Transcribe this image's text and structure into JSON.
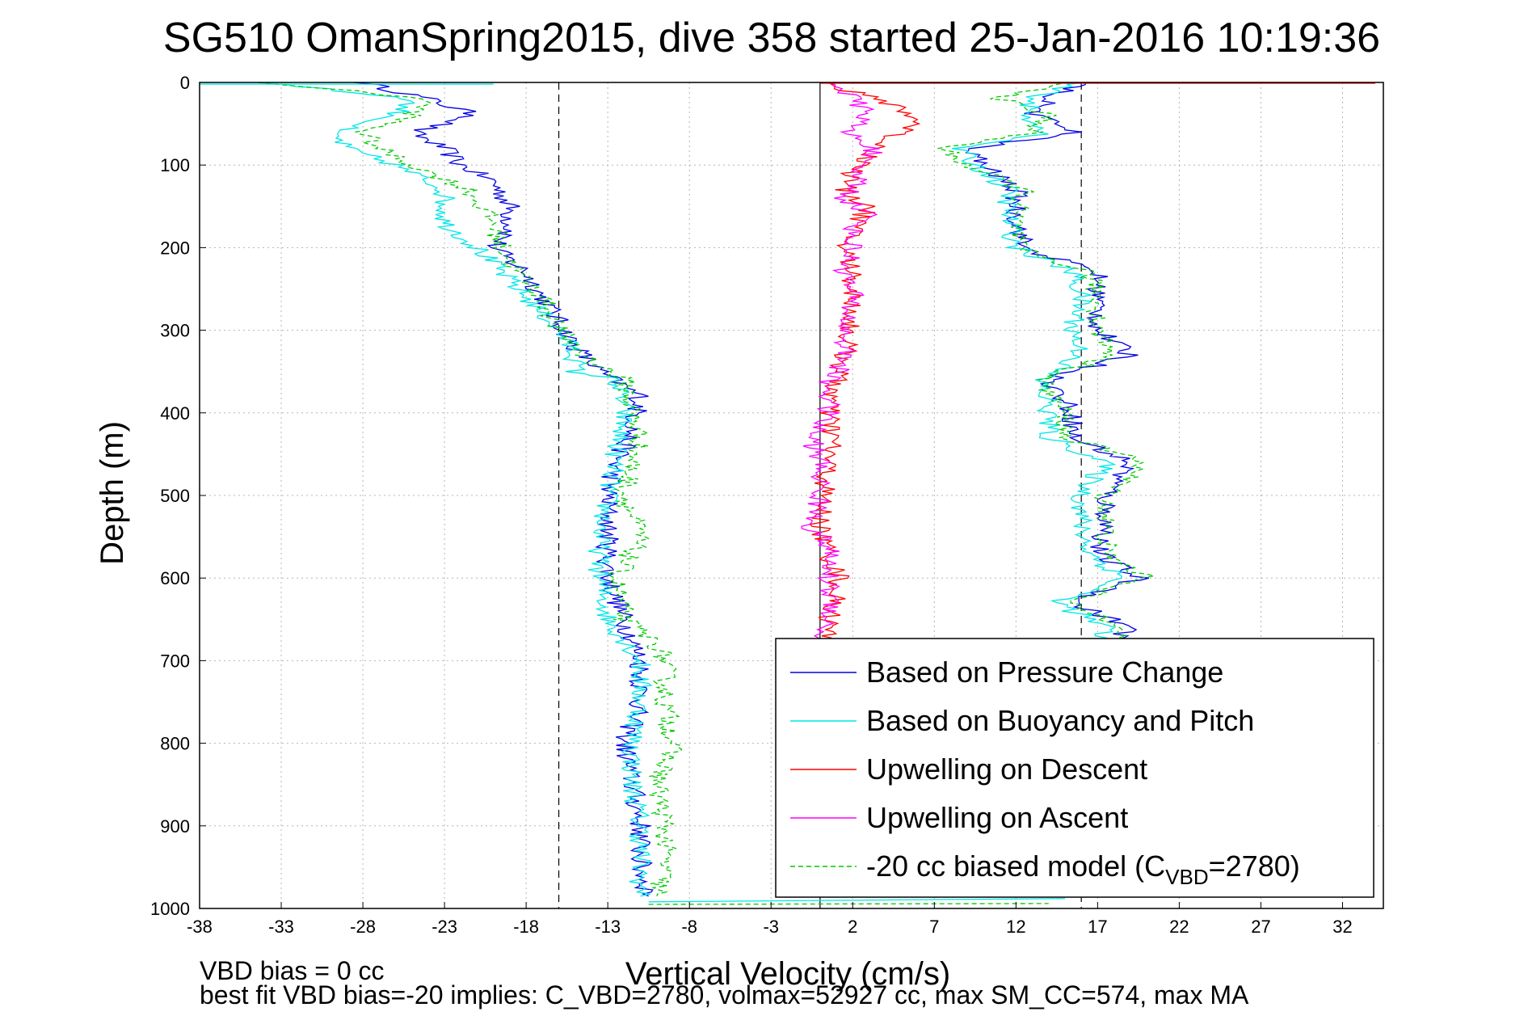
{
  "chart_data": {
    "type": "line",
    "title": "SG510 OmanSpring2015, dive 358 started 25-Jan-2016 10:19:36",
    "xlabel": "Vertical Velocity (cm/s)",
    "ylabel": "Depth (m)",
    "xlim": [
      -38,
      34.5
    ],
    "ylim": [
      0,
      1000
    ],
    "y_reversed": true,
    "grid": true,
    "xticks": [
      "-38",
      "-33",
      "-28",
      "-23",
      "-18",
      "-13",
      "-8",
      "-3",
      "2",
      "7",
      "12",
      "17",
      "22",
      "27",
      "32"
    ],
    "yticks": [
      "0",
      "100",
      "200",
      "300",
      "400",
      "500",
      "600",
      "700",
      "800",
      "900",
      "1000"
    ],
    "reference_lines": {
      "zero_solid_x": 0,
      "dashed_x": [
        -16,
        16
      ]
    },
    "legend_position": "bottom-right",
    "legend": [
      {
        "label": "Based on Pressure Change",
        "color": "#0000e6",
        "style": "solid"
      },
      {
        "label": "Based on Buoyancy and Pitch",
        "color": "#00e6e6",
        "style": "solid"
      },
      {
        "label": "Upwelling on Descent",
        "color": "#ff0000",
        "style": "solid"
      },
      {
        "label": "Upwelling on Ascent",
        "color": "#ff00ff",
        "style": "solid"
      },
      {
        "label": "-20 cc biased model (C",
        "sub": "VBD",
        "suffix": "=2780)",
        "color": "#00c800",
        "style": "dashed"
      }
    ],
    "series": [
      {
        "key": "pressure_descent",
        "color": "#0000e6",
        "dash": "",
        "depth": [
          0,
          20,
          40,
          60,
          80,
          100,
          120,
          150,
          180,
          200,
          230,
          260,
          290,
          320,
          350,
          380,
          420,
          460,
          500,
          550,
          600,
          650,
          700,
          750,
          800,
          850,
          900,
          950,
          985
        ],
        "value": [
          -28,
          -24,
          -21,
          -25,
          -23,
          -22,
          -20,
          -19,
          -19,
          -20,
          -18,
          -17,
          -16,
          -15,
          -13.5,
          -11,
          -11.5,
          -12.5,
          -13,
          -13,
          -13,
          -12,
          -11,
          -11,
          -12,
          -11.5,
          -11,
          -11,
          -10.5
        ]
      },
      {
        "key": "buoyancy_descent",
        "color": "#00e6e6",
        "dash": "",
        "depth": [
          0,
          20,
          40,
          60,
          80,
          100,
          130,
          170,
          200,
          230,
          260,
          300,
          330,
          350,
          360,
          400,
          450,
          500,
          550,
          600,
          650,
          700,
          750,
          800,
          850,
          900,
          950,
          985
        ],
        "value": [
          -34,
          -25,
          -26,
          -30,
          -29,
          -26,
          -23,
          -23,
          -21,
          -19.5,
          -18,
          -16,
          -15,
          -15,
          -12.5,
          -12,
          -12.5,
          -13,
          -13.5,
          -13.5,
          -13,
          -11,
          -11,
          -11.5,
          -11.5,
          -11,
          -11,
          -11
        ]
      },
      {
        "key": "model_descent",
        "color": "#00c800",
        "dash": "6,4",
        "depth": [
          0,
          20,
          40,
          60,
          80,
          100,
          130,
          170,
          200,
          230,
          260,
          300,
          330,
          360,
          400,
          430,
          460,
          500,
          550,
          600,
          650,
          680,
          700,
          750,
          800,
          850,
          900,
          950,
          985
        ],
        "value": [
          -34,
          -24,
          -25,
          -28,
          -27,
          -25,
          -21.5,
          -20,
          -19.5,
          -18.5,
          -17,
          -16,
          -14.5,
          -12,
          -11.5,
          -11,
          -11.5,
          -12,
          -11,
          -12.5,
          -12,
          -10,
          -9.5,
          -9.5,
          -9,
          -10,
          -9.5,
          -9.5,
          -10
        ]
      },
      {
        "key": "pressure_ascent",
        "color": "#0000e6",
        "dash": "",
        "depth": [
          0,
          20,
          40,
          60,
          80,
          100,
          130,
          160,
          200,
          230,
          260,
          300,
          330,
          360,
          400,
          430,
          460,
          500,
          540,
          570,
          600,
          630,
          660,
          680
        ],
        "value": [
          16,
          14,
          13,
          16,
          9,
          10,
          12,
          12,
          12.5,
          17,
          17,
          17,
          19,
          14,
          15.5,
          15.5,
          19,
          17.5,
          17.5,
          17,
          19.5,
          15.5,
          19,
          18
        ]
      },
      {
        "key": "buoyancy_ascent",
        "color": "#00e6e6",
        "dash": "",
        "depth": [
          0,
          20,
          40,
          60,
          80,
          100,
          130,
          160,
          200,
          230,
          260,
          300,
          330,
          360,
          400,
          430,
          460,
          500,
          540,
          570,
          600,
          630,
          660,
          680
        ],
        "value": [
          15.5,
          13,
          12.5,
          14,
          8.5,
          9.5,
          11.5,
          11.5,
          12,
          15.5,
          16,
          15.5,
          16,
          13.5,
          14,
          14,
          17.5,
          16,
          16,
          16.5,
          18.5,
          14.5,
          17.5,
          17
        ]
      },
      {
        "key": "model_ascent",
        "color": "#00c800",
        "dash": "6,4",
        "depth": [
          0,
          20,
          40,
          60,
          80,
          100,
          130,
          160,
          200,
          230,
          260,
          300,
          330,
          360,
          400,
          430,
          460,
          500,
          540,
          570,
          600,
          630,
          660,
          680
        ],
        "value": [
          15,
          11,
          14,
          13,
          7.5,
          9,
          12.5,
          12,
          12,
          16.5,
          17,
          17,
          18,
          13.5,
          15,
          15,
          20,
          17.5,
          17.5,
          17.5,
          20,
          15,
          19,
          18
        ]
      },
      {
        "key": "upwelling_descent",
        "color": "#ff0000",
        "dash": "",
        "depth": [
          0,
          30,
          50,
          70,
          90,
          110,
          130,
          150,
          180,
          200,
          230,
          260,
          300,
          330,
          360,
          400,
          430,
          460,
          500,
          540,
          570,
          600,
          630,
          660,
          680
        ],
        "value": [
          0,
          5,
          6,
          4,
          3,
          2,
          1.5,
          3,
          2,
          1.5,
          2,
          2,
          1.8,
          1.5,
          1,
          0.5,
          0.8,
          0.5,
          0.2,
          0,
          0.5,
          1.2,
          0.8,
          0.5,
          0.3
        ]
      },
      {
        "key": "upwelling_ascent",
        "color": "#ff00ff",
        "dash": "",
        "depth": [
          0,
          20,
          40,
          60,
          80,
          100,
          120,
          140,
          160,
          180,
          200,
          230,
          260,
          300,
          340,
          360,
          400,
          430,
          460,
          500,
          540,
          560,
          600,
          640,
          670,
          680
        ],
        "value": [
          1,
          2,
          3,
          1.5,
          3.5,
          2,
          2.5,
          1.5,
          3,
          2,
          2,
          1.5,
          2,
          1.5,
          1.5,
          0.5,
          0.5,
          -0.5,
          0,
          0,
          -0.5,
          0.5,
          0.5,
          0.8,
          0,
          0
        ]
      }
    ],
    "annotations": [
      "VBD bias = 0 cc",
      "best fit VBD bias=-20 implies: C_VBD=2780, volmax=52927 cc, max SM_CC=574, max MA"
    ]
  }
}
